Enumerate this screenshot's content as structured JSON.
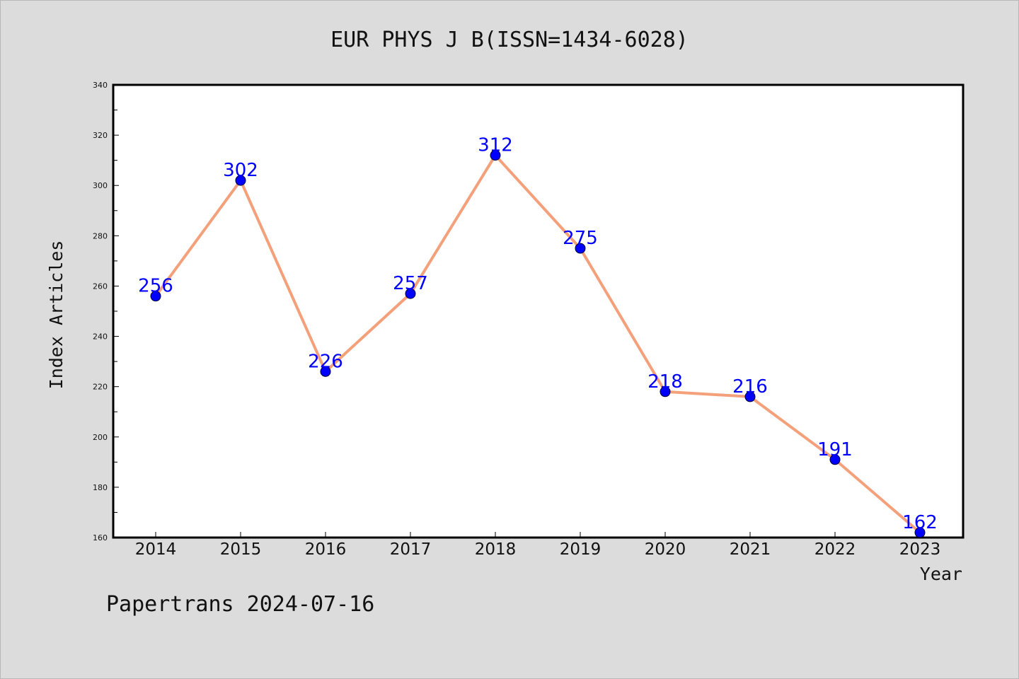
{
  "chart_data": {
    "type": "line",
    "title": "EUR PHYS J B(ISSN=1434-6028)",
    "xlabel": "Year",
    "ylabel": "Index Articles",
    "categories": [
      "2014",
      "2015",
      "2016",
      "2017",
      "2018",
      "2019",
      "2020",
      "2021",
      "2022",
      "2023"
    ],
    "series": [
      {
        "values": [
          256,
          302,
          226,
          257,
          312,
          275,
          218,
          216,
          191,
          162
        ]
      }
    ],
    "ylim": [
      160,
      340
    ],
    "yticks": [
      160,
      180,
      200,
      220,
      240,
      260,
      280,
      300,
      320,
      340
    ],
    "grid": false,
    "data_labels": true,
    "colors": {
      "line": "#f4a07a",
      "marker": "#0000ff",
      "label": "#0000ff",
      "background": "#dcdcdc",
      "plot_area": "#ffffff"
    }
  },
  "footer": {
    "text": "Papertrans 2024-07-16"
  }
}
